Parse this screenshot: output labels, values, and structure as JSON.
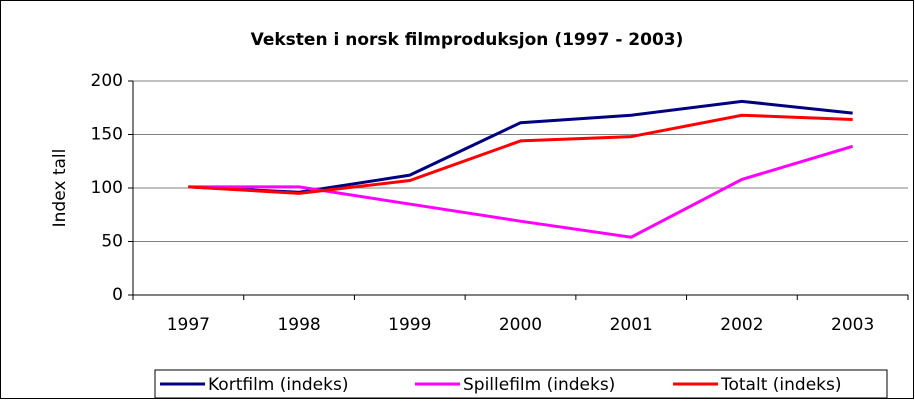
{
  "chart_data": {
    "type": "line",
    "title": "Veksten i norsk filmproduksjon (1997 - 2003)",
    "y_label": "Index tall",
    "categories": [
      "1997",
      "1998",
      "1999",
      "2000",
      "2001",
      "2002",
      "2003"
    ],
    "series": [
      {
        "name": "Kortfilm (indeks)",
        "color": "#000080",
        "values": [
          101,
          96,
          112,
          161,
          168,
          181,
          170
        ]
      },
      {
        "name": "Spillefilm (indeks)",
        "color": "#ff00ff",
        "values": [
          101,
          101,
          85,
          69,
          54,
          108,
          139
        ]
      },
      {
        "name": "Totalt (indeks)",
        "color": "#ff0000",
        "values": [
          101,
          95,
          107,
          144,
          148,
          168,
          164
        ]
      }
    ],
    "ylim": [
      0,
      200
    ],
    "yticks": [
      0,
      50,
      100,
      150,
      200
    ],
    "grid": true,
    "legend": "bottom"
  }
}
